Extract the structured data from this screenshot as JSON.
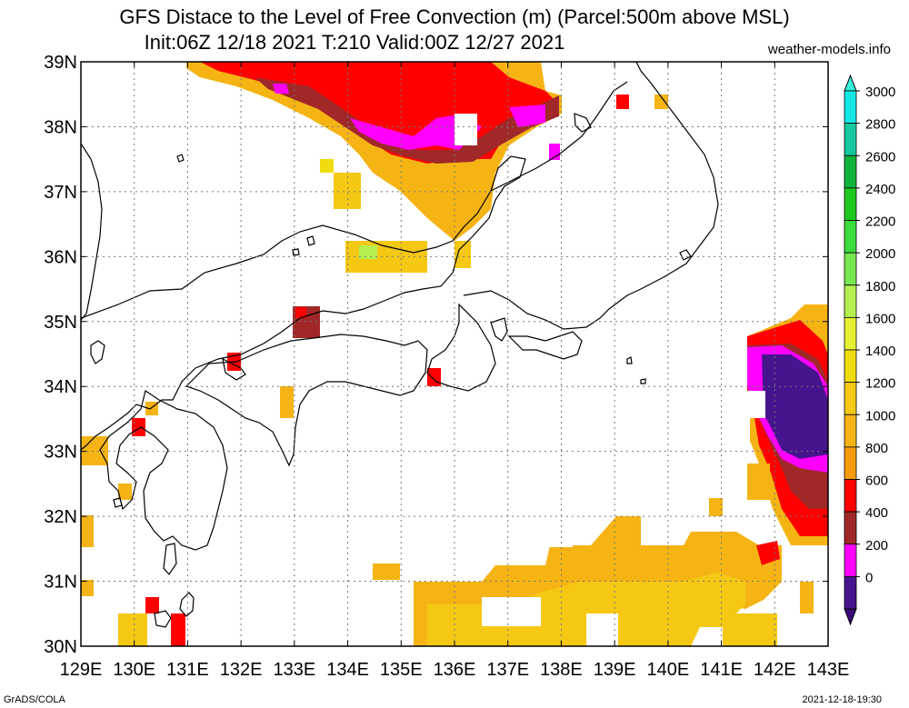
{
  "title_line1": "GFS Distace to the Level of Free Convection (m) (Parcel:500m above MSL)",
  "title_line2": "Init:06Z 12/18 2021 T:210 Valid:00Z 12/27 2021",
  "site": "weather-models.info",
  "footer_left": "GrADS/COLA",
  "footer_right": "2021-12-18-19:30",
  "lon_labels": [
    "129E",
    "130E",
    "131E",
    "132E",
    "133E",
    "134E",
    "135E",
    "136E",
    "137E",
    "138E",
    "139E",
    "140E",
    "141E",
    "142E",
    "143E"
  ],
  "lat_labels": [
    "39N",
    "38N",
    "37N",
    "36N",
    "35N",
    "34N",
    "33N",
    "32N",
    "31N",
    "30N"
  ],
  "colorbar": {
    "labels": [
      "3000",
      "2800",
      "2600",
      "2400",
      "2200",
      "2000",
      "1800",
      "1600",
      "1400",
      "1200",
      "1000",
      "800",
      "600",
      "400",
      "200",
      "0"
    ],
    "colors": [
      "#14e6e6",
      "#14c8a0",
      "#0fb43c",
      "#1ec81e",
      "#3cdc3c",
      "#78e650",
      "#b4f050",
      "#e6f032",
      "#f0dc0f",
      "#f5c814",
      "#f5b414",
      "#f59b0a",
      "#ff0000",
      "#a02828",
      "#ff00ff",
      "#46148c"
    ],
    "top_arrow": "#32f0dc",
    "bottom_arrow": "#3c0a78"
  }
}
